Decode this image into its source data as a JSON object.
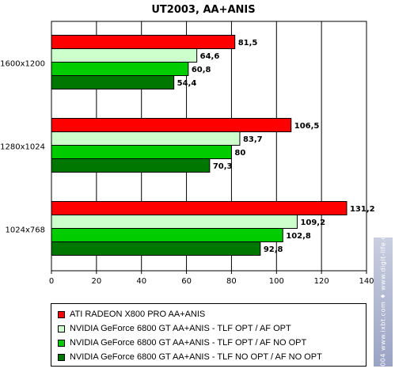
{
  "chart_data": {
    "type": "bar",
    "orientation": "horizontal",
    "title": "UT2003, AA+ANIS",
    "categories": [
      "1600x1200",
      "1280x1024",
      "1024x768"
    ],
    "series": [
      {
        "name": "ATI RADEON X800 PRO AA+ANIS",
        "color": "#ff0000",
        "values": [
          81.5,
          106.5,
          131.2
        ],
        "labels": [
          "81,5",
          "106,5",
          "131,2"
        ]
      },
      {
        "name": "NVIDIA GeForce 6800 GT AA+ANIS - TLF OPT / AF OPT",
        "color": "#ccffcc",
        "values": [
          64.6,
          83.7,
          109.2
        ],
        "labels": [
          "64,6",
          "83,7",
          "109,2"
        ]
      },
      {
        "name": "NVIDIA GeForce 6800 GT AA+ANIS - TLF OPT / AF NO OPT",
        "color": "#00cc00",
        "values": [
          60.8,
          80,
          102.8
        ],
        "labels": [
          "60,8",
          "80",
          "102,8"
        ]
      },
      {
        "name": "NVIDIA GeForce 6800 GT AA+ANIS - TLF NO OPT / AF NO OPT",
        "color": "#007700",
        "values": [
          54.4,
          70.3,
          92.8
        ],
        "labels": [
          "54,4",
          "70,3",
          "92,8"
        ]
      }
    ],
    "xlim": [
      0,
      140
    ],
    "xticks": [
      0,
      20,
      40,
      60,
      80,
      100,
      120,
      140
    ],
    "grid": true,
    "legend_position": "bottom"
  },
  "watermark": "© 2004 www.ixbt.com ♦ www.digit-life.com"
}
